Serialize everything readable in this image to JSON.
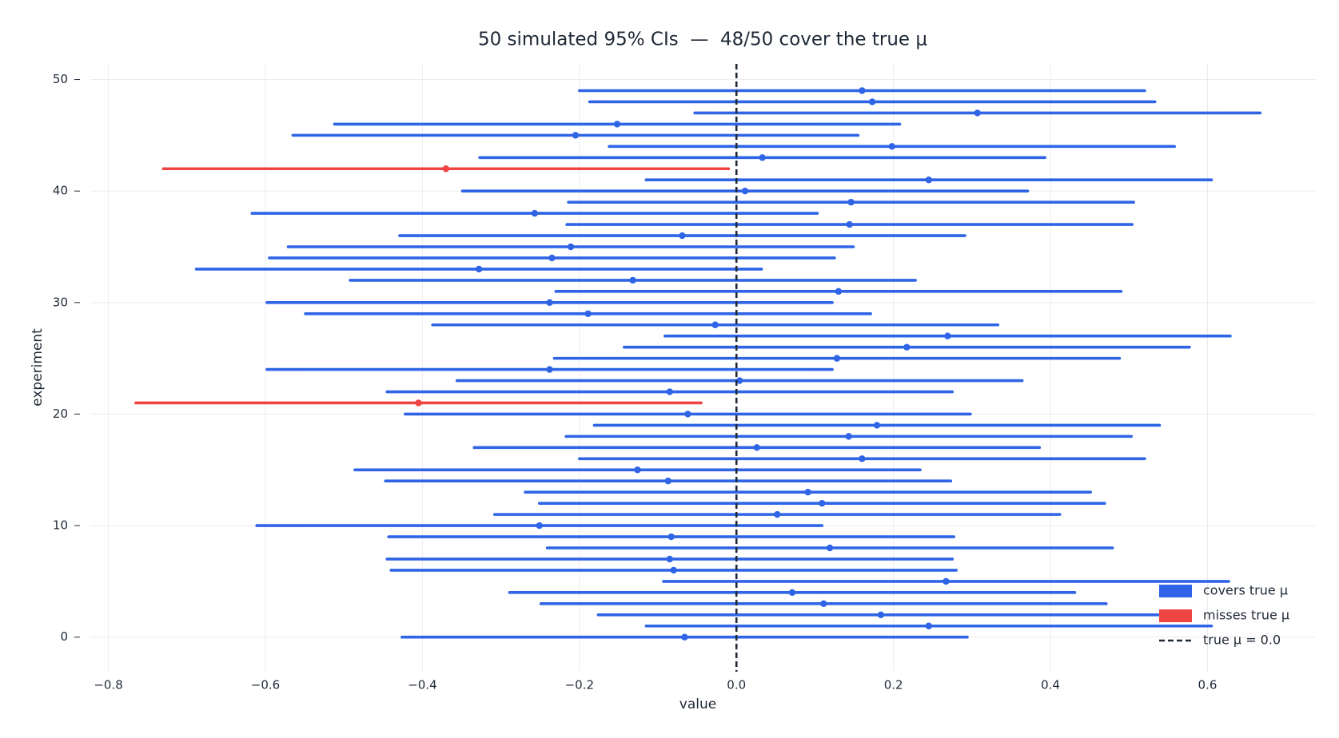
{
  "chart_data": {
    "type": "interval",
    "title": "50 simulated 95% CIs  —  48/50 cover the true μ",
    "xlabel": "value",
    "ylabel": "experiment",
    "xlim": [
      -0.823,
      0.738
    ],
    "xticks": [
      {
        "value": -0.8,
        "label": "−0.8"
      },
      {
        "value": -0.6,
        "label": "−0.6"
      },
      {
        "value": -0.4,
        "label": "−0.4"
      },
      {
        "value": -0.2,
        "label": "−0.2"
      },
      {
        "value": 0,
        "label": "0.0"
      },
      0.2,
      0.4,
      0.6
    ],
    "ylim": [
      -3.1,
      51.4
    ],
    "yticks": [
      0,
      10,
      20,
      30,
      40,
      50
    ],
    "grid": true,
    "legend": "lower right",
    "series": [
      {
        "name": "covers true μ",
        "color": "#2f64e6",
        "y": [
          0,
          1,
          2,
          3,
          4,
          5,
          6,
          7,
          8,
          9,
          10,
          11,
          12,
          13,
          14,
          15,
          16,
          17,
          18,
          19,
          20,
          22,
          23,
          24,
          25,
          26,
          27,
          28,
          29,
          30,
          31,
          32,
          33,
          34,
          35,
          36,
          37,
          38,
          39,
          40,
          41,
          43,
          44,
          45,
          46,
          47,
          48,
          49
        ],
        "values": [
          -0.066,
          0.245,
          0.184,
          0.111,
          0.071,
          0.267,
          -0.08,
          -0.085,
          0.119,
          -0.083,
          -0.251,
          0.052,
          0.109,
          0.091,
          -0.087,
          -0.126,
          0.16,
          0.026,
          0.143,
          0.179,
          -0.062,
          -0.085,
          0.004,
          -0.238,
          0.128,
          0.217,
          0.269,
          -0.027,
          -0.189,
          -0.238,
          0.13,
          -0.132,
          -0.328,
          -0.235,
          -0.211,
          -0.069,
          0.144,
          -0.257,
          0.146,
          0.011,
          0.245,
          0.033,
          0.198,
          -0.205,
          -0.152,
          0.307,
          0.173,
          0.16
        ],
        "lower": [
          -0.426,
          -0.115,
          -0.176,
          -0.249,
          -0.289,
          -0.093,
          -0.44,
          -0.445,
          -0.241,
          -0.443,
          -0.611,
          -0.308,
          -0.251,
          -0.269,
          -0.447,
          -0.486,
          -0.2,
          -0.334,
          -0.217,
          -0.181,
          -0.422,
          -0.445,
          -0.356,
          -0.598,
          -0.232,
          -0.143,
          -0.091,
          -0.387,
          -0.549,
          -0.598,
          -0.23,
          -0.492,
          -0.688,
          -0.595,
          -0.571,
          -0.429,
          -0.216,
          -0.617,
          -0.214,
          -0.349,
          -0.115,
          -0.327,
          -0.162,
          -0.565,
          -0.512,
          -0.053,
          -0.187,
          -0.2
        ],
        "upper": [
          0.294,
          0.605,
          0.544,
          0.471,
          0.431,
          0.627,
          0.28,
          0.275,
          0.479,
          0.277,
          0.109,
          0.412,
          0.469,
          0.451,
          0.273,
          0.234,
          0.52,
          0.386,
          0.503,
          0.539,
          0.298,
          0.275,
          0.364,
          0.122,
          0.488,
          0.577,
          0.629,
          0.333,
          0.171,
          0.122,
          0.49,
          0.228,
          0.032,
          0.125,
          0.149,
          0.291,
          0.504,
          0.103,
          0.506,
          0.371,
          0.605,
          0.393,
          0.558,
          0.155,
          0.208,
          0.667,
          0.533,
          0.52
        ]
      },
      {
        "name": "misses true μ",
        "color": "#ef4444",
        "y": [
          21,
          42
        ],
        "values": [
          -0.405,
          -0.37
        ],
        "lower": [
          -0.765,
          -0.73
        ],
        "upper": [
          -0.045,
          -0.01
        ]
      }
    ],
    "ref_line": {
      "value": 0,
      "label": "true μ = 0.0",
      "color": "#1f2937"
    }
  }
}
